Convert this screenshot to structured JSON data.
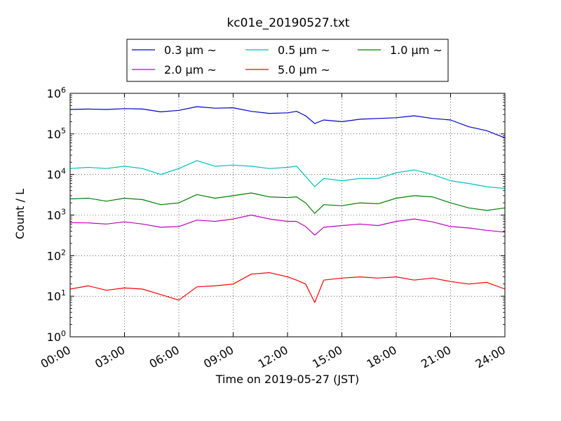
{
  "chart_data": {
    "type": "line",
    "title": "kc01e_20190527.txt",
    "xlabel": "Time on 2019-05-27 (JST)",
    "ylabel": "Count / L",
    "yscale": "log",
    "ylim_exponents": [
      0,
      6
    ],
    "xlim_hours": [
      0,
      24
    ],
    "grid": true,
    "legend_position": "top-center (above plot)",
    "x_tick_labels": [
      "00:00",
      "03:00",
      "06:00",
      "09:00",
      "12:00",
      "15:00",
      "18:00",
      "21:00",
      "24:00"
    ],
    "y_tick_base": "10",
    "y_tick_exponents": [
      "0",
      "1",
      "2",
      "3",
      "4",
      "5",
      "6"
    ],
    "x_hours": [
      0,
      1,
      2,
      3,
      4,
      5,
      6,
      7,
      8,
      9,
      10,
      11,
      12,
      12.5,
      13,
      13.5,
      14,
      15,
      16,
      17,
      18,
      19,
      20,
      21,
      22,
      23,
      24
    ],
    "series": [
      {
        "name": "0.3 μm ~",
        "color": "#0000cc",
        "values": [
          400000,
          410000,
          400000,
          420000,
          410000,
          350000,
          380000,
          470000,
          430000,
          440000,
          360000,
          320000,
          330000,
          360000,
          280000,
          180000,
          220000,
          200000,
          230000,
          240000,
          250000,
          280000,
          240000,
          220000,
          150000,
          120000,
          80000
        ]
      },
      {
        "name": "0.5 μm ~",
        "color": "#00bfbf",
        "values": [
          14000,
          15000,
          14000,
          16000,
          14000,
          10000,
          14000,
          22000,
          16000,
          17000,
          16000,
          14000,
          15000,
          16000,
          9000,
          5000,
          8000,
          7000,
          8000,
          8000,
          11000,
          13000,
          10000,
          7000,
          6000,
          5000,
          4500
        ]
      },
      {
        "name": "1.0 μm ~",
        "color": "#008000",
        "values": [
          2500,
          2600,
          2200,
          2600,
          2400,
          1800,
          2000,
          3200,
          2600,
          3000,
          3500,
          2800,
          2700,
          2800,
          2000,
          1100,
          1800,
          1700,
          2000,
          1900,
          2600,
          3000,
          2800,
          2000,
          1500,
          1300,
          1500
        ]
      },
      {
        "name": "2.0 μm ~",
        "color": "#bf00bf",
        "values": [
          650,
          640,
          600,
          680,
          600,
          500,
          520,
          750,
          700,
          800,
          1000,
          800,
          700,
          700,
          520,
          320,
          500,
          550,
          600,
          550,
          700,
          800,
          680,
          520,
          480,
          420,
          380
        ]
      },
      {
        "name": "5.0 μm ~",
        "color": "#ff0000",
        "values": [
          15,
          18,
          14,
          16,
          15,
          11,
          8,
          17,
          18,
          20,
          35,
          38,
          30,
          25,
          20,
          7,
          25,
          28,
          30,
          28,
          30,
          25,
          28,
          23,
          20,
          22,
          15
        ]
      }
    ]
  }
}
